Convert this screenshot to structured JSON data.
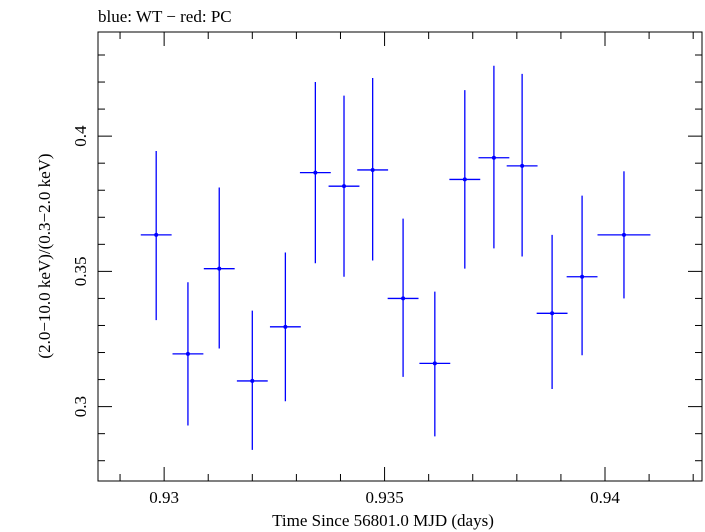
{
  "chart_data": {
    "type": "scatter",
    "title": "blue: WT − red: PC",
    "xlabel": "Time Since 56801.0 MJD (days)",
    "ylabel": "(2.0−10.0 keV)/(0.3−2.0 keV)",
    "xlim": [
      0.9285,
      0.9422
    ],
    "ylim": [
      0.2725,
      0.4385
    ],
    "xticks": [
      0.93,
      0.935,
      0.94
    ],
    "xtick_labels": [
      "0.93",
      "0.935",
      "0.94"
    ],
    "yticks": [
      0.3,
      0.35,
      0.4
    ],
    "ytick_labels": [
      "0.3",
      "0.35",
      "0.4"
    ],
    "grid": false,
    "series": [
      {
        "color": "#0000ff",
        "points": [
          {
            "x": 0.92982,
            "xerr": 0.00035,
            "y": 0.3635,
            "yerr_lo": 0.0315,
            "yerr_hi": 0.031
          },
          {
            "x": 0.93054,
            "xerr": 0.00035,
            "y": 0.3195,
            "yerr_lo": 0.0265,
            "yerr_hi": 0.0265
          },
          {
            "x": 0.93125,
            "xerr": 0.00035,
            "y": 0.351,
            "yerr_lo": 0.0295,
            "yerr_hi": 0.03
          },
          {
            "x": 0.932,
            "xerr": 0.00035,
            "y": 0.3095,
            "yerr_lo": 0.0255,
            "yerr_hi": 0.026
          },
          {
            "x": 0.93275,
            "xerr": 0.00035,
            "y": 0.3295,
            "yerr_lo": 0.0275,
            "yerr_hi": 0.0275
          },
          {
            "x": 0.93343,
            "xerr": 0.00035,
            "y": 0.3865,
            "yerr_lo": 0.0335,
            "yerr_hi": 0.0335
          },
          {
            "x": 0.93408,
            "xerr": 0.00035,
            "y": 0.3815,
            "yerr_lo": 0.0335,
            "yerr_hi": 0.0335
          },
          {
            "x": 0.93473,
            "xerr": 0.00035,
            "y": 0.3875,
            "yerr_lo": 0.0335,
            "yerr_hi": 0.034
          },
          {
            "x": 0.93542,
            "xerr": 0.00035,
            "y": 0.34,
            "yerr_lo": 0.029,
            "yerr_hi": 0.0295
          },
          {
            "x": 0.93614,
            "xerr": 0.00035,
            "y": 0.316,
            "yerr_lo": 0.027,
            "yerr_hi": 0.0265
          },
          {
            "x": 0.93682,
            "xerr": 0.00035,
            "y": 0.384,
            "yerr_lo": 0.033,
            "yerr_hi": 0.033
          },
          {
            "x": 0.93748,
            "xerr": 0.00035,
            "y": 0.392,
            "yerr_lo": 0.0335,
            "yerr_hi": 0.034
          },
          {
            "x": 0.93812,
            "xerr": 0.00035,
            "y": 0.389,
            "yerr_lo": 0.0335,
            "yerr_hi": 0.034
          },
          {
            "x": 0.9388,
            "xerr": 0.00035,
            "y": 0.3345,
            "yerr_lo": 0.028,
            "yerr_hi": 0.029
          },
          {
            "x": 0.93948,
            "xerr": 0.00035,
            "y": 0.348,
            "yerr_lo": 0.029,
            "yerr_hi": 0.03
          },
          {
            "x": 0.94043,
            "xerr": 0.0006,
            "y": 0.3635,
            "yerr_lo": 0.0235,
            "yerr_hi": 0.0235
          }
        ]
      }
    ]
  }
}
